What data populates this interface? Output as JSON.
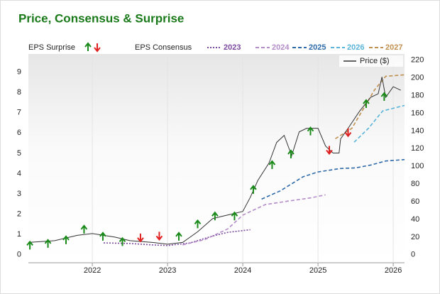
{
  "chart_data": {
    "type": "line",
    "title": "Price, Consensus & Surprise",
    "surprise_label": "EPS Surprise",
    "consensus_label": "EPS Consensus",
    "xlim": [
      2021.15,
      2026.15
    ],
    "xticks": [
      2022,
      2023,
      2024,
      2025,
      2026
    ],
    "ylim": [
      -0.4,
      9.9
    ],
    "yticks": [
      0,
      1,
      2,
      3,
      4,
      5,
      6,
      7,
      8,
      9
    ],
    "y2lim": [
      -9,
      227
    ],
    "y2ticks": [
      0,
      20,
      40,
      60,
      80,
      100,
      120,
      140,
      160,
      180,
      200,
      220
    ],
    "grid": true,
    "series": [
      {
        "name": "2023",
        "color": "#7b4a9e",
        "style": "dotted",
        "x": [
          2022.15,
          2022.5,
          2022.8,
          2023.0,
          2023.3,
          2023.6,
          2023.8,
          2024.1
        ],
        "values": [
          0.58,
          0.55,
          0.48,
          0.45,
          0.58,
          0.92,
          1.1,
          1.23
        ]
      },
      {
        "name": "2024",
        "color": "#b48cc8",
        "style": "dashed",
        "x": [
          2023.2,
          2023.5,
          2023.8,
          2024.0,
          2024.3,
          2024.6,
          2024.9,
          2025.1
        ],
        "values": [
          0.48,
          0.75,
          1.27,
          1.95,
          2.47,
          2.64,
          2.8,
          2.95
        ]
      },
      {
        "name": "2025",
        "color": "#2e6aa8",
        "style": "dashed",
        "x": [
          2024.25,
          2024.5,
          2024.8,
          2025.0,
          2025.3,
          2025.5,
          2025.7,
          2025.9,
          2026.15
        ],
        "values": [
          2.74,
          3.15,
          3.84,
          4.08,
          4.25,
          4.28,
          4.42,
          4.62,
          4.69
        ]
      },
      {
        "name": "2026",
        "color": "#58b4d8",
        "style": "dashed",
        "x": [
          2025.48,
          2025.67,
          2025.86,
          2026.15
        ],
        "values": [
          5.55,
          6.23,
          7.09,
          7.36
        ]
      },
      {
        "name": "2027",
        "color": "#c09050",
        "style": "dashed",
        "x": [
          2025.23,
          2025.45,
          2025.75,
          2025.9,
          2026.15
        ],
        "values": [
          5.72,
          6.23,
          8.12,
          8.8,
          8.87
        ]
      },
      {
        "name": "Price ($)",
        "color": "#333333",
        "style": "solid",
        "axis": "y2",
        "x": [
          2021.15,
          2021.5,
          2021.8,
          2022.0,
          2022.3,
          2022.5,
          2022.8,
          2023.0,
          2023.2,
          2023.4,
          2023.6,
          2023.8,
          2024.0,
          2024.1,
          2024.2,
          2024.35,
          2024.45,
          2024.55,
          2024.65,
          2024.75,
          2024.85,
          2025.0,
          2025.1,
          2025.2,
          2025.28,
          2025.3,
          2025.4,
          2025.55,
          2025.7,
          2025.8,
          2025.85,
          2025.9,
          2026.0,
          2026.1
        ],
        "values": [
          14,
          16,
          22,
          24,
          20,
          16,
          14,
          12,
          14,
          26,
          41,
          45,
          49,
          65,
          84,
          104,
          127,
          135,
          112,
          139,
          143,
          143,
          123,
          115,
          115,
          131,
          143,
          162,
          178,
          182,
          201,
          178,
          190,
          186
        ]
      }
    ],
    "surprises": {
      "axis": "y2",
      "up_color": "#1a8a1a",
      "down_color": "#e02020",
      "x": [
        2021.17,
        2021.41,
        2021.65,
        2021.89,
        2022.14,
        2022.4,
        2022.64,
        2022.89,
        2023.15,
        2023.4,
        2023.63,
        2023.89,
        2024.14,
        2024.39,
        2024.64,
        2024.9,
        2025.15,
        2025.4,
        2025.64,
        2025.88
      ],
      "values": [
        10,
        12,
        16,
        28,
        20,
        14,
        20,
        22,
        20,
        34,
        43,
        43,
        73,
        101,
        113,
        139,
        119,
        139,
        170,
        178
      ],
      "direction": [
        "up",
        "up",
        "up",
        "up",
        "up",
        "up",
        "down",
        "down",
        "up",
        "up",
        "up",
        "up",
        "up",
        "up",
        "up",
        "up",
        "down",
        "down",
        "up",
        "up"
      ]
    }
  }
}
